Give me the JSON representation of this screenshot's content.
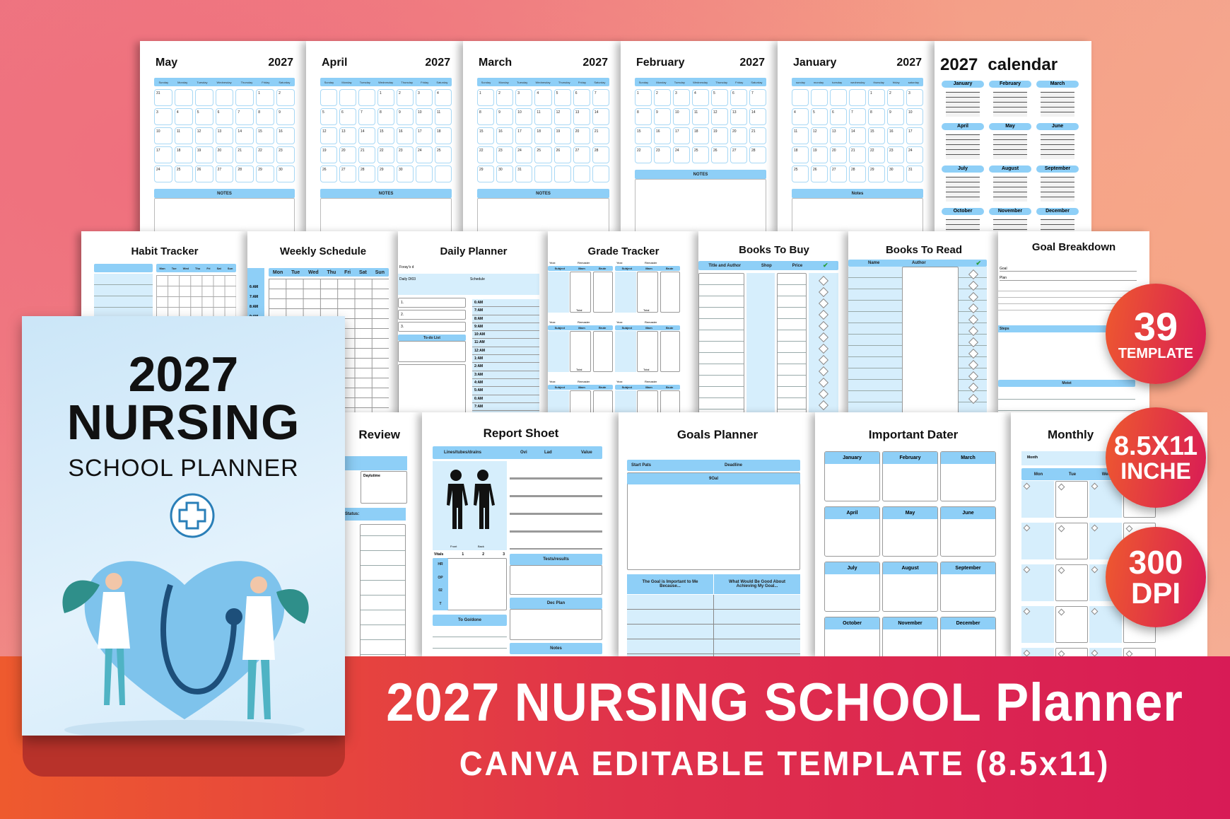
{
  "colors": {
    "accent_blue": "#8ecff7",
    "light_blue": "#d6eefc",
    "banner_start": "#ee5a2e",
    "banner_end": "#d81b56"
  },
  "month_pages": [
    {
      "month": "May",
      "year": "2027",
      "days": [
        "Sunday",
        "Monday",
        "Tuesday",
        "Wednesday",
        "Thursday",
        "Friday",
        "Saturday"
      ],
      "cells": [
        "31",
        "",
        "",
        "",
        "",
        "1",
        "2",
        "3",
        "4",
        "5",
        "6",
        "7",
        "8",
        "9",
        "10",
        "11",
        "12",
        "13",
        "14",
        "15",
        "16",
        "17",
        "18",
        "19",
        "20",
        "21",
        "22",
        "23",
        "24",
        "25",
        "26",
        "27",
        "28",
        "29",
        "30"
      ],
      "notes": "NOTES"
    },
    {
      "month": "April",
      "year": "2027",
      "days": [
        "Sunday",
        "Monday",
        "Tuesday",
        "Wednesday",
        "Thursday",
        "Friday",
        "Saturday"
      ],
      "cells": [
        "",
        "",
        "",
        "1",
        "2",
        "3",
        "4",
        "5",
        "6",
        "7",
        "8",
        "9",
        "10",
        "11",
        "12",
        "13",
        "14",
        "15",
        "16",
        "17",
        "18",
        "19",
        "20",
        "21",
        "22",
        "23",
        "24",
        "25",
        "26",
        "27",
        "28",
        "29",
        "30",
        "",
        ""
      ],
      "notes": "NOTES"
    },
    {
      "month": "March",
      "year": "2027",
      "days": [
        "Sunday",
        "Monday",
        "Tuesday",
        "Wednesday",
        "Thursday",
        "Friday",
        "Saturday"
      ],
      "cells": [
        "1",
        "2",
        "3",
        "4",
        "5",
        "6",
        "7",
        "8",
        "9",
        "10",
        "11",
        "12",
        "13",
        "14",
        "15",
        "16",
        "17",
        "18",
        "19",
        "20",
        "21",
        "22",
        "23",
        "24",
        "25",
        "26",
        "27",
        "28",
        "29",
        "30",
        "31",
        "",
        "",
        "",
        ""
      ],
      "notes": "NOTES"
    },
    {
      "month": "February",
      "year": "2027",
      "days": [
        "Sunday",
        "Monday",
        "Tuesday",
        "Wednesday",
        "Thursday",
        "Friday",
        "Saturday"
      ],
      "cells": [
        "1",
        "2",
        "3",
        "4",
        "5",
        "6",
        "7",
        "8",
        "9",
        "10",
        "11",
        "12",
        "13",
        "14",
        "15",
        "16",
        "17",
        "18",
        "19",
        "20",
        "21",
        "22",
        "23",
        "24",
        "25",
        "26",
        "27",
        "28"
      ],
      "notes": "NOTES"
    },
    {
      "month": "January",
      "year": "2027",
      "days": [
        "sunday",
        "monday",
        "tuesday",
        "wednesday",
        "thursday",
        "friday",
        "saturday"
      ],
      "cells": [
        "",
        "",
        "",
        "",
        "1",
        "2",
        "3",
        "4",
        "5",
        "6",
        "7",
        "8",
        "9",
        "10",
        "11",
        "12",
        "13",
        "14",
        "15",
        "16",
        "17",
        "18",
        "19",
        "20",
        "21",
        "22",
        "23",
        "24",
        "25",
        "26",
        "27",
        "28",
        "29",
        "30",
        "31"
      ],
      "notes": "Notes"
    }
  ],
  "year_calendar": {
    "year": "2027",
    "title": "calendar",
    "months": [
      "January",
      "February",
      "March",
      "April",
      "May",
      "June",
      "July",
      "August",
      "September",
      "October",
      "November",
      "December"
    ]
  },
  "habit": {
    "title": "Habit Tracker",
    "days": [
      "Mon",
      "Tue",
      "Wed",
      "Thu",
      "Fri",
      "Sat",
      "Sun"
    ]
  },
  "weekly": {
    "title": "Weekly Schedule",
    "days": [
      "Mon",
      "Tue",
      "Wed",
      "Thu",
      "Fri",
      "Sat",
      "Sun"
    ],
    "times": [
      "6:AM",
      "7:AM",
      "8:AM",
      "9:AM"
    ]
  },
  "daily": {
    "title": "Daily Planner",
    "field1": "Foray's d",
    "field2": "Daily DI03",
    "schedule": "Schedule",
    "items": [
      "1.",
      "2.",
      "3."
    ],
    "todo": "To-do List",
    "times": [
      "6:AM",
      "7:AM",
      "8:AM",
      "9:AM",
      "10:AM",
      "11:AM",
      "12:AM",
      "1:AM",
      "2:AM",
      "3:AM",
      "4:AM",
      "5:AM",
      "6:AM",
      "7:AM",
      "8:AM"
    ]
  },
  "grade": {
    "title": "Grade Tracker",
    "year": "Year:",
    "remaster": "Remaster",
    "cols": [
      "Subject",
      "Marn",
      "Brute"
    ],
    "total": "Total"
  },
  "books_buy": {
    "title": "Books To Buy",
    "cols": [
      "Title and Author",
      "Shop",
      "Price"
    ],
    "check": "✔"
  },
  "books_read": {
    "title": "Books To Read",
    "cols": [
      "Name",
      "Author"
    ],
    "check": "✔"
  },
  "goal_breakdown": {
    "title": "Goal Breakdown",
    "goal": "Goal",
    "plan": "Plan",
    "steps": "Steps",
    "notes": "Motet"
  },
  "review": {
    "title": "Review",
    "daytime": "Daylutime",
    "status": "Status:"
  },
  "report": {
    "title": "Report Shoet",
    "cols": [
      "Lines/tubes/drains",
      "Ovi",
      "Lad",
      "Value"
    ],
    "front": "Front",
    "back": "Back",
    "vitals": [
      "Vitals",
      "1",
      "2",
      "3"
    ],
    "vital_rows": [
      "HR",
      "OP",
      "02",
      "T"
    ],
    "togo": "To Go/done",
    "tests": "Tests/results",
    "plan": "Dec Plan",
    "notes": "Notes"
  },
  "goals_planner": {
    "title": "Goals Planner",
    "start": "Start Pats",
    "deadline": "Deadline",
    "goal": "9Oal",
    "why1": "The Goal is Important to Me Because...",
    "why2": "What Would Be Good About Achieving My Goal..."
  },
  "important": {
    "title": "Important Dater",
    "months": [
      "January",
      "February",
      "March",
      "April",
      "May",
      "June",
      "July",
      "August",
      "September",
      "October",
      "November",
      "December"
    ]
  },
  "monthly": {
    "title": "Monthly",
    "month": "Month",
    "days": [
      "Mon",
      "Tue",
      "Wed"
    ]
  },
  "cover": {
    "year": "2027",
    "line1": "NURSING",
    "line2": "SCHOOL PLANNER"
  },
  "badges": [
    {
      "big": "39",
      "small": "TEMPLATE"
    },
    {
      "big": "8.5X11",
      "small": "INCHE"
    },
    {
      "big": "300",
      "small": "DPI"
    }
  ],
  "banner": {
    "title": "2027 NURSING SCHOOL Planner",
    "subtitle": "CANVA EDITABLE TEMPLATE (8.5x11)"
  }
}
